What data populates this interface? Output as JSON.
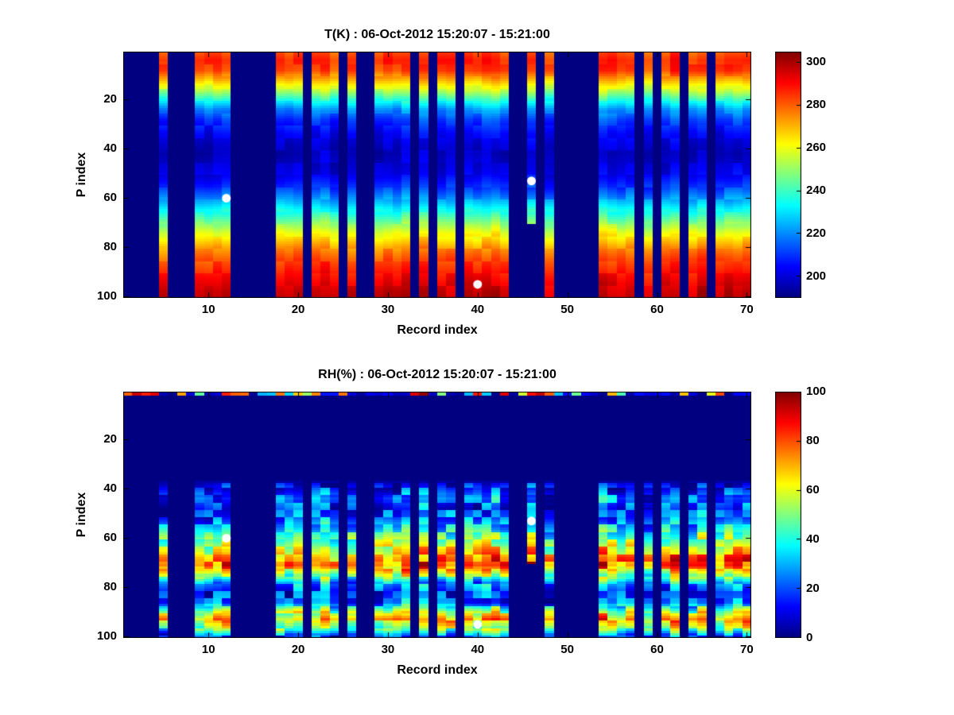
{
  "figure": {
    "background": "#ffffff",
    "axis_color": "#000000",
    "font_color": "#000000",
    "marker_color": "#ffffff"
  },
  "chart_data": [
    {
      "id": "temperature",
      "type": "heatmap",
      "title": "T(K) : 06-Oct-2012 15:20:07 - 15:21:00",
      "xlabel": "Record index",
      "ylabel": "P index",
      "xlim": [
        0.5,
        70.5
      ],
      "ylim": [
        0.5,
        100.5
      ],
      "y_reversed": true,
      "x_ticks": [
        10,
        20,
        30,
        40,
        50,
        60,
        70
      ],
      "y_ticks": [
        20,
        40,
        60,
        80,
        100
      ],
      "colormap": "jet",
      "clim": [
        190,
        305
      ],
      "colorbar_ticks": [
        200,
        220,
        240,
        260,
        280,
        300
      ],
      "missing_value": 190,
      "record_groups": [
        [
          5,
          5
        ],
        [
          9,
          12
        ],
        [
          18,
          20
        ],
        [
          22,
          24
        ],
        [
          26,
          26
        ],
        [
          29,
          32
        ],
        [
          34,
          34
        ],
        [
          36,
          37
        ],
        [
          39,
          43
        ],
        [
          46,
          46
        ],
        [
          48,
          48
        ],
        [
          54,
          57
        ],
        [
          59,
          59
        ],
        [
          61,
          62
        ],
        [
          64,
          65
        ],
        [
          67,
          70
        ]
      ],
      "short_columns": [
        {
          "record": 46,
          "p_start": 1,
          "p_end": 70
        }
      ],
      "profile": [
        [
          1,
          282
        ],
        [
          4,
          287
        ],
        [
          8,
          284
        ],
        [
          12,
          270
        ],
        [
          16,
          255
        ],
        [
          20,
          238
        ],
        [
          24,
          222
        ],
        [
          28,
          212
        ],
        [
          34,
          203
        ],
        [
          42,
          197
        ],
        [
          50,
          202
        ],
        [
          56,
          212
        ],
        [
          62,
          226
        ],
        [
          68,
          243
        ],
        [
          74,
          260
        ],
        [
          80,
          274
        ],
        [
          86,
          284
        ],
        [
          92,
          291
        ],
        [
          97,
          296
        ],
        [
          100,
          298
        ]
      ],
      "noise": {
        "amp": 4,
        "col_amp": 3,
        "p_block": 5,
        "p_min": 1
      },
      "top_speckle_row": false,
      "markers": [
        {
          "record": 12,
          "p": 60
        },
        {
          "record": 40,
          "p": 95
        },
        {
          "record": 46,
          "p": 53
        }
      ]
    },
    {
      "id": "relative_humidity",
      "type": "heatmap",
      "title": "RH(%) : 06-Oct-2012 15:20:07 - 15:21:00",
      "xlabel": "Record index",
      "ylabel": "P index",
      "xlim": [
        0.5,
        70.5
      ],
      "ylim": [
        0.5,
        100.5
      ],
      "y_reversed": true,
      "x_ticks": [
        10,
        20,
        30,
        40,
        50,
        60,
        70
      ],
      "y_ticks": [
        20,
        40,
        60,
        80,
        100
      ],
      "colormap": "jet",
      "clim": [
        0,
        100
      ],
      "colorbar_ticks": [
        0,
        20,
        40,
        60,
        80,
        100
      ],
      "missing_value": 0,
      "record_groups": [
        [
          5,
          5
        ],
        [
          9,
          12
        ],
        [
          18,
          20
        ],
        [
          22,
          24
        ],
        [
          26,
          26
        ],
        [
          29,
          32
        ],
        [
          34,
          34
        ],
        [
          36,
          37
        ],
        [
          39,
          43
        ],
        [
          46,
          46
        ],
        [
          48,
          48
        ],
        [
          54,
          57
        ],
        [
          59,
          59
        ],
        [
          61,
          62
        ],
        [
          64,
          65
        ],
        [
          67,
          70
        ]
      ],
      "short_columns": [
        {
          "record": 46,
          "p_start": 1,
          "p_end": 70
        }
      ],
      "profile": [
        [
          1,
          0
        ],
        [
          36,
          0
        ],
        [
          40,
          14
        ],
        [
          44,
          26
        ],
        [
          48,
          18
        ],
        [
          52,
          22
        ],
        [
          56,
          35
        ],
        [
          60,
          48
        ],
        [
          64,
          62
        ],
        [
          68,
          75
        ],
        [
          71,
          80
        ],
        [
          74,
          62
        ],
        [
          78,
          30
        ],
        [
          82,
          18
        ],
        [
          86,
          22
        ],
        [
          90,
          55
        ],
        [
          93,
          72
        ],
        [
          96,
          55
        ],
        [
          100,
          18
        ]
      ],
      "noise": {
        "amp": 16,
        "col_amp": 8,
        "p_block": 3,
        "p_min": 38
      },
      "top_speckle_row": true,
      "markers": [
        {
          "record": 12,
          "p": 60
        },
        {
          "record": 40,
          "p": 95
        },
        {
          "record": 46,
          "p": 53
        }
      ]
    }
  ]
}
